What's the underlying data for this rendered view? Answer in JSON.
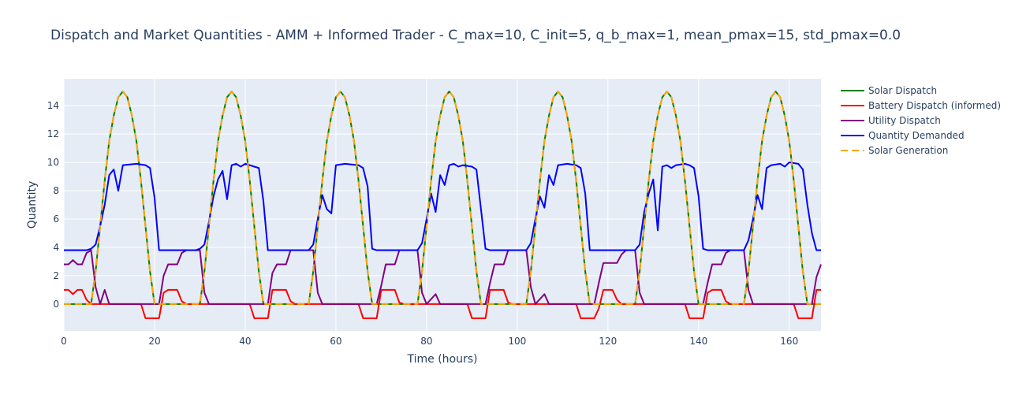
{
  "chart_data": {
    "type": "line",
    "title": "Dispatch and Market Quantities  - AMM + Informed Trader - C_max=10, C_init=5, q_b_max=1, mean_pmax=15, std_pmax=0.0",
    "xlabel": "Time (hours)",
    "ylabel": "Quantity",
    "xlim": [
      0,
      167
    ],
    "ylim": [
      -1.9,
      15.9
    ],
    "xticks": [
      0,
      20,
      40,
      60,
      80,
      100,
      120,
      140,
      160
    ],
    "yticks": [
      0,
      2,
      4,
      6,
      8,
      10,
      12,
      14
    ],
    "grid": true,
    "legend_position": "right",
    "series": [
      {
        "name": "Solar Dispatch",
        "color": "#008000",
        "dash": "solid",
        "pattern": "solar",
        "values": [
          [
            0,
            0
          ],
          [
            6,
            0
          ],
          [
            7,
            2.3
          ],
          [
            8,
            5.5
          ],
          [
            9,
            8.7
          ],
          [
            10,
            11.5
          ],
          [
            11,
            13.3
          ],
          [
            12,
            14.6
          ],
          [
            13,
            15
          ],
          [
            14,
            14.6
          ],
          [
            15,
            13.3
          ],
          [
            16,
            11.5
          ],
          [
            17,
            8.7
          ],
          [
            18,
            5.5
          ],
          [
            19,
            2.3
          ],
          [
            20,
            0
          ],
          [
            167,
            0
          ]
        ]
      },
      {
        "name": "Battery Dispatch (informed)",
        "color": "#ff0000",
        "dash": "solid",
        "values": [
          [
            0,
            1
          ],
          [
            1,
            1
          ],
          [
            2,
            0.7
          ],
          [
            3,
            1
          ],
          [
            4,
            1
          ],
          [
            5,
            0.3
          ],
          [
            6,
            0
          ],
          [
            17,
            0
          ],
          [
            18,
            -1
          ],
          [
            21,
            -1
          ],
          [
            22,
            0.8
          ],
          [
            23,
            1
          ],
          [
            25,
            1
          ],
          [
            26,
            0.2
          ],
          [
            27,
            0
          ],
          [
            41,
            0
          ],
          [
            42,
            -1
          ],
          [
            45,
            -1
          ],
          [
            46,
            1
          ],
          [
            49,
            1
          ],
          [
            50,
            0.2
          ],
          [
            51,
            0
          ],
          [
            65,
            0
          ],
          [
            66,
            -1
          ],
          [
            69,
            -1
          ],
          [
            70,
            1
          ],
          [
            73,
            1
          ],
          [
            74,
            0.1
          ],
          [
            75,
            0
          ],
          [
            89,
            0
          ],
          [
            90,
            -1
          ],
          [
            93,
            -1
          ],
          [
            94,
            1
          ],
          [
            97,
            1
          ],
          [
            98,
            0.1
          ],
          [
            99,
            0
          ],
          [
            113,
            0
          ],
          [
            114,
            -1
          ],
          [
            117,
            -1
          ],
          [
            118,
            -0.3
          ],
          [
            119,
            1
          ],
          [
            121,
            1
          ],
          [
            122,
            0.3
          ],
          [
            123,
            0
          ],
          [
            137,
            0
          ],
          [
            138,
            -1
          ],
          [
            141,
            -1
          ],
          [
            142,
            0.8
          ],
          [
            143,
            1
          ],
          [
            145,
            1
          ],
          [
            146,
            0.2
          ],
          [
            147,
            0
          ],
          [
            161,
            0
          ],
          [
            162,
            -1
          ],
          [
            165,
            -1
          ],
          [
            166,
            1
          ],
          [
            167,
            1
          ]
        ]
      },
      {
        "name": "Utility Dispatch",
        "color": "#800080",
        "dash": "solid",
        "values": [
          [
            0,
            2.8
          ],
          [
            1,
            2.8
          ],
          [
            2,
            3.1
          ],
          [
            3,
            2.8
          ],
          [
            4,
            2.8
          ],
          [
            5,
            3.6
          ],
          [
            6,
            3.8
          ],
          [
            7,
            1.2
          ],
          [
            8,
            0
          ],
          [
            9,
            1
          ],
          [
            10,
            0
          ],
          [
            21,
            0
          ],
          [
            22,
            2
          ],
          [
            23,
            2.8
          ],
          [
            25,
            2.8
          ],
          [
            26,
            3.6
          ],
          [
            27,
            3.8
          ],
          [
            30,
            3.8
          ],
          [
            31,
            0.8
          ],
          [
            32,
            0
          ],
          [
            45,
            0
          ],
          [
            46,
            2.2
          ],
          [
            47,
            2.8
          ],
          [
            49,
            2.8
          ],
          [
            50,
            3.8
          ],
          [
            55,
            3.8
          ],
          [
            56,
            0.8
          ],
          [
            57,
            0
          ],
          [
            69,
            0
          ],
          [
            70,
            1.3
          ],
          [
            71,
            2.8
          ],
          [
            73,
            2.8
          ],
          [
            74,
            3.8
          ],
          [
            78,
            3.8
          ],
          [
            79,
            0.8
          ],
          [
            80,
            0
          ],
          [
            82,
            0.7
          ],
          [
            83,
            0
          ],
          [
            93,
            0
          ],
          [
            94,
            1.5
          ],
          [
            95,
            2.8
          ],
          [
            97,
            2.8
          ],
          [
            98,
            3.8
          ],
          [
            102,
            3.8
          ],
          [
            103,
            1.2
          ],
          [
            104,
            0
          ],
          [
            106,
            0.7
          ],
          [
            107,
            0
          ],
          [
            117,
            0
          ],
          [
            118,
            1.5
          ],
          [
            119,
            2.9
          ],
          [
            122,
            2.9
          ],
          [
            123,
            3.5
          ],
          [
            124,
            3.8
          ],
          [
            126,
            3.8
          ],
          [
            127,
            0.8
          ],
          [
            128,
            0
          ],
          [
            141,
            0
          ],
          [
            142,
            1.5
          ],
          [
            143,
            2.8
          ],
          [
            145,
            2.8
          ],
          [
            146,
            3.6
          ],
          [
            147,
            3.8
          ],
          [
            150,
            3.8
          ],
          [
            151,
            1
          ],
          [
            152,
            0
          ],
          [
            165,
            0
          ],
          [
            166,
            1.9
          ],
          [
            167,
            2.8
          ]
        ]
      },
      {
        "name": "Quantity Demanded",
        "color": "#0000ff",
        "dash": "solid",
        "values": [
          [
            0,
            3.8
          ],
          [
            5,
            3.8
          ],
          [
            6,
            3.9
          ],
          [
            7,
            4.2
          ],
          [
            8,
            5.5
          ],
          [
            9,
            7
          ],
          [
            10,
            9.1
          ],
          [
            11,
            9.5
          ],
          [
            12,
            8
          ],
          [
            13,
            9.8
          ],
          [
            16,
            9.9
          ],
          [
            18,
            9.8
          ],
          [
            19,
            9.6
          ],
          [
            20,
            7.5
          ],
          [
            21,
            3.8
          ],
          [
            29,
            3.8
          ],
          [
            30,
            3.9
          ],
          [
            31,
            4.2
          ],
          [
            32,
            5.8
          ],
          [
            33,
            7.6
          ],
          [
            34,
            8.8
          ],
          [
            35,
            9.4
          ],
          [
            36,
            7.4
          ],
          [
            37,
            9.8
          ],
          [
            38,
            9.9
          ],
          [
            39,
            9.7
          ],
          [
            40,
            9.9
          ],
          [
            43,
            9.6
          ],
          [
            44,
            7.3
          ],
          [
            45,
            3.8
          ],
          [
            54,
            3.8
          ],
          [
            55,
            4.2
          ],
          [
            56,
            6
          ],
          [
            57,
            7.7
          ],
          [
            58,
            6.7
          ],
          [
            59,
            6.4
          ],
          [
            60,
            9.8
          ],
          [
            62,
            9.9
          ],
          [
            65,
            9.8
          ],
          [
            66,
            9.6
          ],
          [
            67,
            8.3
          ],
          [
            68,
            3.9
          ],
          [
            69,
            3.8
          ],
          [
            78,
            3.8
          ],
          [
            79,
            4.3
          ],
          [
            80,
            6
          ],
          [
            81,
            7.8
          ],
          [
            82,
            6.5
          ],
          [
            83,
            9.1
          ],
          [
            84,
            8.4
          ],
          [
            85,
            9.8
          ],
          [
            86,
            9.9
          ],
          [
            87,
            9.7
          ],
          [
            88,
            9.8
          ],
          [
            90,
            9.7
          ],
          [
            91,
            9.5
          ],
          [
            92,
            6.7
          ],
          [
            93,
            3.9
          ],
          [
            94,
            3.8
          ],
          [
            102,
            3.8
          ],
          [
            103,
            4.3
          ],
          [
            104,
            6
          ],
          [
            105,
            7.6
          ],
          [
            106,
            6.8
          ],
          [
            107,
            9.1
          ],
          [
            108,
            8.4
          ],
          [
            109,
            9.8
          ],
          [
            111,
            9.9
          ],
          [
            113,
            9.8
          ],
          [
            114,
            9.6
          ],
          [
            115,
            7.8
          ],
          [
            116,
            3.8
          ],
          [
            126,
            3.8
          ],
          [
            127,
            4.2
          ],
          [
            128,
            6.5
          ],
          [
            129,
            7.8
          ],
          [
            130,
            8.8
          ],
          [
            131,
            5.2
          ],
          [
            132,
            9.7
          ],
          [
            133,
            9.8
          ],
          [
            134,
            9.6
          ],
          [
            135,
            9.8
          ],
          [
            137,
            9.9
          ],
          [
            138,
            9.8
          ],
          [
            139,
            9.6
          ],
          [
            140,
            7.6
          ],
          [
            141,
            3.9
          ],
          [
            142,
            3.8
          ],
          [
            150,
            3.8
          ],
          [
            151,
            4.5
          ],
          [
            152,
            6
          ],
          [
            153,
            7.7
          ],
          [
            154,
            6.7
          ],
          [
            155,
            9.6
          ],
          [
            156,
            9.8
          ],
          [
            158,
            9.9
          ],
          [
            159,
            9.7
          ],
          [
            160,
            10
          ],
          [
            162,
            9.9
          ],
          [
            163,
            9.5
          ],
          [
            164,
            7
          ],
          [
            165,
            5
          ],
          [
            166,
            3.8
          ],
          [
            167,
            3.8
          ]
        ]
      },
      {
        "name": "Solar Generation",
        "color": "#ffa500",
        "dash": "dash",
        "pattern": "solar",
        "values": [
          [
            0,
            0
          ],
          [
            6,
            0
          ],
          [
            7,
            2.3
          ],
          [
            8,
            5.5
          ],
          [
            9,
            8.7
          ],
          [
            10,
            11.5
          ],
          [
            11,
            13.3
          ],
          [
            12,
            14.6
          ],
          [
            13,
            15
          ],
          [
            14,
            14.6
          ],
          [
            15,
            13.3
          ],
          [
            16,
            11.5
          ],
          [
            17,
            8.7
          ],
          [
            18,
            5.5
          ],
          [
            19,
            2.3
          ],
          [
            20,
            0
          ],
          [
            167,
            0
          ]
        ]
      }
    ]
  },
  "colors": {
    "plot_background": "#e5ecf6",
    "grid": "#ffffff",
    "text": "#2a3f5f"
  }
}
